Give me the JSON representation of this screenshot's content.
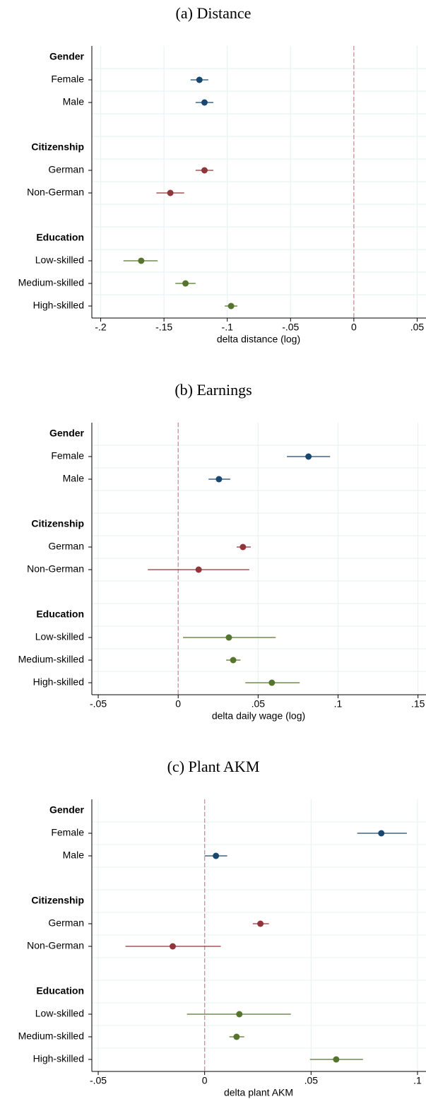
{
  "chart_data": [
    {
      "type": "coefplot",
      "title": "(a) Distance",
      "xlabel": "delta distance (log)",
      "xlim": [
        -0.207,
        0.057
      ],
      "xticks": [
        {
          "value": -0.2,
          "label": "-.2"
        },
        {
          "value": -0.15,
          "label": "-.15"
        },
        {
          "value": -0.1,
          "label": "-.1"
        },
        {
          "value": -0.05,
          "label": "-.05"
        },
        0,
        {
          "value": 0.05,
          "label": ".05"
        }
      ],
      "reference_line": 0,
      "grid": true,
      "groups": [
        {
          "name": "Gender",
          "color": "#1a476f",
          "categories": [
            "Female",
            "Male"
          ],
          "values": [
            -0.122,
            -0.118
          ],
          "ci_low": [
            -0.129,
            -0.125
          ],
          "ci_high": [
            -0.115,
            -0.111
          ]
        },
        {
          "name": "Citizenship",
          "color": "#90353b",
          "categories": [
            "German",
            "Non-German"
          ],
          "values": [
            -0.118,
            -0.145
          ],
          "ci_low": [
            -0.125,
            -0.156
          ],
          "ci_high": [
            -0.111,
            -0.134
          ]
        },
        {
          "name": "Education",
          "color": "#55752f",
          "categories": [
            "Low-skilled",
            "Medium-skilled",
            "High-skilled"
          ],
          "values": [
            -0.168,
            -0.133,
            -0.097
          ],
          "ci_low": [
            -0.182,
            -0.141,
            -0.102
          ],
          "ci_high": [
            -0.155,
            -0.125,
            -0.092
          ]
        }
      ]
    },
    {
      "type": "coefplot",
      "title": "(b) Earnings",
      "xlabel": "delta daily wage (log)",
      "xlim": [
        -0.054,
        0.155
      ],
      "xticks": [
        {
          "value": -0.05,
          "label": "-.05"
        },
        0,
        {
          "value": 0.05,
          "label": ".05"
        },
        {
          "value": 0.1,
          "label": ".1"
        },
        {
          "value": 0.15,
          "label": ".15"
        }
      ],
      "reference_line": 0,
      "grid": true,
      "groups": [
        {
          "name": "Gender",
          "color": "#1a476f",
          "categories": [
            "Female",
            "Male"
          ],
          "values": [
            0.0815,
            0.0255
          ],
          "ci_low": [
            0.068,
            0.019
          ],
          "ci_high": [
            0.095,
            0.0326
          ]
        },
        {
          "name": "Citizenship",
          "color": "#90353b",
          "categories": [
            "German",
            "Non-German"
          ],
          "values": [
            0.0405,
            0.0128
          ],
          "ci_low": [
            0.0366,
            -0.019
          ],
          "ci_high": [
            0.0454,
            0.0445
          ]
        },
        {
          "name": "Education",
          "color": "#55752f",
          "categories": [
            "Low-skilled",
            "Medium-skilled",
            "High-skilled"
          ],
          "values": [
            0.0317,
            0.0344,
            0.0586
          ],
          "ci_low": [
            0.003,
            0.03,
            0.042
          ],
          "ci_high": [
            0.061,
            0.039,
            0.076
          ]
        }
      ]
    },
    {
      "type": "coefplot",
      "title": "(c) Plant AKM",
      "xlabel": "delta plant AKM",
      "xlim": [
        -0.053,
        0.104
      ],
      "xticks": [
        {
          "value": -0.05,
          "label": "-.05"
        },
        0,
        {
          "value": 0.05,
          "label": ".05"
        },
        {
          "value": 0.1,
          "label": ".1"
        }
      ],
      "reference_line": 0,
      "grid": true,
      "groups": [
        {
          "name": "Gender",
          "color": "#1a476f",
          "categories": [
            "Female",
            "Male"
          ],
          "values": [
            0.083,
            0.0053
          ],
          "ci_low": [
            0.0717,
            0
          ],
          "ci_high": [
            0.095,
            0.0106
          ]
        },
        {
          "name": "Citizenship",
          "color": "#90353b",
          "categories": [
            "German",
            "Non-German"
          ],
          "values": [
            0.0262,
            -0.015
          ],
          "ci_low": [
            0.0226,
            -0.0372
          ],
          "ci_high": [
            0.0302,
            0.0076
          ]
        },
        {
          "name": "Education",
          "color": "#55752f",
          "categories": [
            "Low-skilled",
            "Medium-skilled",
            "High-skilled"
          ],
          "values": [
            0.0163,
            0.015,
            0.0618
          ],
          "ci_low": [
            -0.0083,
            0.0116,
            0.0495
          ],
          "ci_high": [
            0.0405,
            0.0186,
            0.0744
          ]
        }
      ]
    }
  ]
}
